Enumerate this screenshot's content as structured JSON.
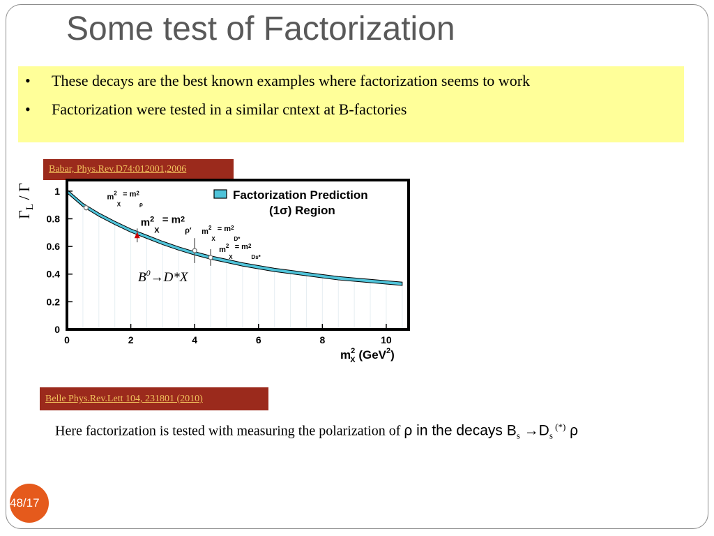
{
  "slide": {
    "title": "Some test of Factorization",
    "bullets": [
      "These decays are the best known examples where factorization seems to work",
      "Factorization were tested in a similar cntext at B-factories"
    ],
    "ref_babar": "Babar, Phys.Rev.D74:012001,2006",
    "ref_belle": "Belle Phys.Rev.Lett  104,   231801 (2010)",
    "note_text": "Here factorization is tested with  measuring the polarization of ",
    "note_rho": "ρ in the decays B",
    "note_s1": "s",
    "note_arrow": " →D",
    "note_s2": "s",
    "note_star": " (*)",
    "note_end": " ρ",
    "page_number": "48/17",
    "badge_color": "#e55a1c"
  },
  "chart_data": {
    "type": "scatter",
    "ylabel": "Γ",
    "ylabel_sub": "L",
    "ylabel_tail": " / Γ",
    "xlabel": "m",
    "xlabel_sub": "X",
    "xlabel_sup": "2",
    "xlabel_units": " (GeV",
    "xlabel_units_sup": "2",
    "xlabel_units_end": ")",
    "xlim": [
      0,
      10.7
    ],
    "ylim": [
      0,
      1.08
    ],
    "xticks": [
      0,
      2,
      4,
      6,
      8,
      10
    ],
    "xtick_labels": [
      "0",
      "2",
      "4",
      "6",
      "8",
      "10"
    ],
    "yticks": [
      0,
      0.2,
      0.4,
      0.6,
      0.8,
      1
    ],
    "ytick_labels": [
      "0",
      "0.2",
      "0.4",
      "0.6",
      "0.8",
      "1"
    ],
    "band_color": "#4fc3d9",
    "legend_line1": "Factorization Prediction",
    "legend_line2": "(1σ) Region",
    "decay_label": "B",
    "decay_sup": "0",
    "decay_tail": "→D*X",
    "band": {
      "x": [
        0,
        0.5,
        1,
        1.5,
        2,
        2.5,
        3,
        3.5,
        4,
        4.5,
        5,
        5.5,
        6,
        6.5,
        7,
        7.5,
        8,
        8.5,
        9,
        9.5,
        10,
        10.5
      ],
      "y": [
        1.0,
        0.9,
        0.83,
        0.77,
        0.715,
        0.67,
        0.625,
        0.585,
        0.55,
        0.52,
        0.495,
        0.47,
        0.45,
        0.43,
        0.415,
        0.4,
        0.385,
        0.37,
        0.36,
        0.35,
        0.34,
        0.33
      ]
    },
    "points": [
      {
        "x": 0.6,
        "y": 0.88,
        "err": 0.02,
        "label": "m",
        "label_sup": "2",
        "label_sub": "X",
        "label_eq": " = m",
        "label_sub2": "ρ",
        "label_sup2": "2",
        "color": "#777777"
      },
      {
        "x": 2.2,
        "y": 0.68,
        "err": 0.05,
        "label": "m",
        "label_sup": "2",
        "label_sub": "X",
        "label_eq": " = m",
        "label_sub2": "ρ′",
        "label_sup2": "2",
        "color": "#cc0000"
      },
      {
        "x": 4.0,
        "y": 0.57,
        "err": 0.09,
        "label": "m",
        "label_sup": "2",
        "label_sub": "X",
        "label_eq": " = m",
        "label_sub2": "D*",
        "label_sup2": "2",
        "color": "#777777"
      },
      {
        "x": 4.5,
        "y": 0.52,
        "err": 0.06,
        "label": "m",
        "label_sup": "2",
        "label_sub": "X",
        "label_eq": " = m",
        "label_sub2": "Ds*",
        "label_sup2": "2",
        "color": "#777777"
      }
    ]
  }
}
